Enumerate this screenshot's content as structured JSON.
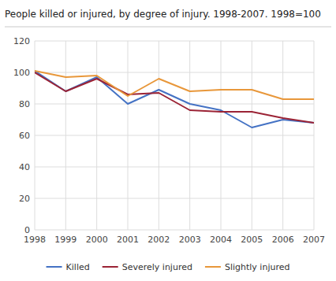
{
  "chart_data": {
    "type": "line",
    "title": "People killed or injured, by degree of injury. 1998-2007. 1998=100",
    "x": [
      1998,
      1999,
      2000,
      2001,
      2002,
      2003,
      2004,
      2005,
      2006,
      2007
    ],
    "series": [
      {
        "name": "Killed",
        "color": "#4472C4",
        "values": [
          101,
          88,
          97,
          80,
          89,
          80,
          76,
          65,
          70,
          68
        ]
      },
      {
        "name": "Severely injured",
        "color": "#9B2335",
        "values": [
          100,
          88,
          96,
          86,
          87,
          76,
          75,
          75,
          71,
          68
        ]
      },
      {
        "name": "Slightly injured",
        "color": "#E8973A",
        "values": [
          101,
          97,
          98,
          85,
          96,
          88,
          89,
          89,
          83,
          83
        ]
      }
    ],
    "xlim": [
      1998,
      2007
    ],
    "xticks": [
      1998,
      1999,
      2000,
      2001,
      2002,
      2003,
      2004,
      2005,
      2006,
      2007
    ],
    "ylim": [
      0,
      120
    ],
    "yticks": [
      0,
      20,
      40,
      60,
      80,
      100,
      120
    ],
    "grid": true,
    "legend": "bottom"
  }
}
